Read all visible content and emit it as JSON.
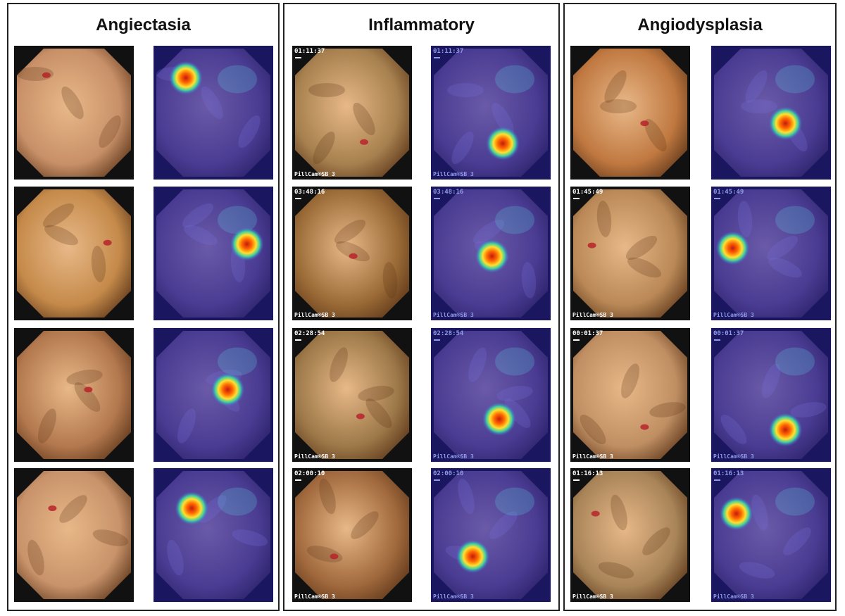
{
  "panels": [
    {
      "title": "Angiectasia",
      "rows": [
        {
          "time": "",
          "brand": "",
          "tone": "#c89068",
          "spot": [
            0.27,
            0.24
          ],
          "lesion": [
            0.27,
            0.22
          ]
        },
        {
          "time": "",
          "brand": "",
          "tone": "#c58a4a",
          "spot": [
            0.78,
            0.43
          ],
          "lesion": [
            0.78,
            0.42
          ]
        },
        {
          "time": "",
          "brand": "",
          "tone": "#b3784e",
          "spot": [
            0.62,
            0.46
          ],
          "lesion": [
            0.62,
            0.46
          ]
        },
        {
          "time": "",
          "brand": "",
          "tone": "#c8926a",
          "spot": [
            0.32,
            0.3
          ],
          "lesion": [
            0.32,
            0.3
          ]
        }
      ]
    },
    {
      "title": "Inflammatory",
      "rows": [
        {
          "time": "01:11:37",
          "brand": "PillCam®SB 3",
          "tone": "#a6804e",
          "spot": [
            0.6,
            0.73
          ],
          "lesion": [
            0.6,
            0.72
          ]
        },
        {
          "time": "03:48:16",
          "brand": "PillCam®SB 3",
          "tone": "#9a6a36",
          "spot": [
            0.51,
            0.52
          ],
          "lesion": [
            0.51,
            0.52
          ]
        },
        {
          "time": "02:28:54",
          "brand": "PillCam®SB 3",
          "tone": "#9c7848",
          "spot": [
            0.57,
            0.68
          ],
          "lesion": [
            0.57,
            0.66
          ]
        },
        {
          "time": "02:00:10",
          "brand": "PillCam®SB 3",
          "tone": "#a0683c",
          "spot": [
            0.35,
            0.66
          ],
          "lesion": [
            0.35,
            0.66
          ]
        }
      ]
    },
    {
      "title": "Angiodysplasia",
      "rows": [
        {
          "time": "",
          "brand": "",
          "tone": "#c07840",
          "spot": [
            0.62,
            0.58
          ],
          "lesion": [
            0.62,
            0.58
          ]
        },
        {
          "time": "01:45:49",
          "brand": "PillCam®SB 3",
          "tone": "#b98856",
          "spot": [
            0.18,
            0.46
          ],
          "lesion": [
            0.18,
            0.44
          ]
        },
        {
          "time": "00:01:37",
          "brand": "PillCam®SB 3",
          "tone": "#bf8e62",
          "spot": [
            0.62,
            0.76
          ],
          "lesion": [
            0.62,
            0.74
          ]
        },
        {
          "time": "01:16:13",
          "brand": "PillCam®SB 3",
          "tone": "#a88458",
          "spot": [
            0.21,
            0.34
          ],
          "lesion": [
            0.21,
            0.34
          ]
        }
      ]
    }
  ]
}
